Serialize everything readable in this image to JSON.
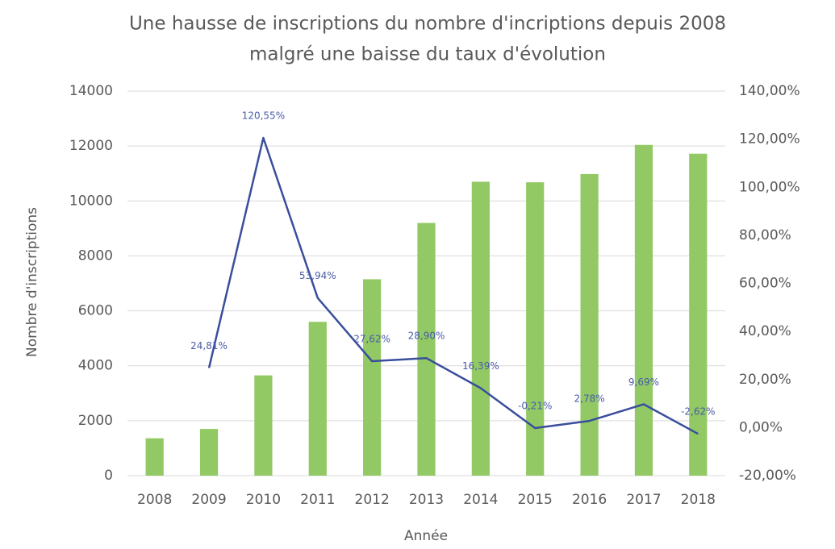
{
  "chart_data": {
    "type": "bar_line",
    "title": [
      "Une hausse de inscriptions du nombre d'incriptions  depuis 2008",
      "malgré une baisse du taux d'évolution"
    ],
    "x_label": "Année",
    "y_label": "Nombre d'inscriptions",
    "categories": [
      "2008",
      "2009",
      "2010",
      "2011",
      "2012",
      "2013",
      "2014",
      "2015",
      "2016",
      "2017",
      "2018"
    ],
    "series": [
      {
        "name": "Nombre d'inscriptions",
        "type": "bar",
        "color": "#92c964",
        "axis": "y",
        "values": [
          1360,
          1700,
          3650,
          5600,
          7150,
          9200,
          10700,
          10680,
          10980,
          12040,
          11720
        ]
      },
      {
        "name": "Taux d'évolution",
        "type": "line",
        "color": "#3a4e9c",
        "axis": "y2",
        "values": [
          null,
          24.81,
          120.55,
          53.94,
          27.62,
          28.9,
          16.39,
          -0.21,
          2.78,
          9.69,
          -2.62
        ],
        "value_labels": [
          null,
          "24,81%",
          "120,55%",
          "53,94%",
          "27,62%",
          "28,90%",
          "16,39%",
          "-0,21%",
          "2,78%",
          "9,69%",
          "-2,62%"
        ]
      }
    ],
    "ylim": [
      0,
      14000
    ],
    "yticks": [
      0,
      2000,
      4000,
      6000,
      8000,
      10000,
      12000,
      14000
    ],
    "y2lim": [
      -20,
      140
    ],
    "y2ticks": [
      {
        "value": -20,
        "label": "-20,00%"
      },
      {
        "value": 0,
        "label": "0,00%"
      },
      {
        "value": 20,
        "label": "20,00%"
      },
      {
        "value": 40,
        "label": "40,00%"
      },
      {
        "value": 60,
        "label": "60,00%"
      },
      {
        "value": 80,
        "label": "80,00%"
      },
      {
        "value": 100,
        "label": "100,00%"
      },
      {
        "value": 120,
        "label": "120,00%"
      },
      {
        "value": 140,
        "label": "140,00%"
      }
    ],
    "grid": true
  }
}
